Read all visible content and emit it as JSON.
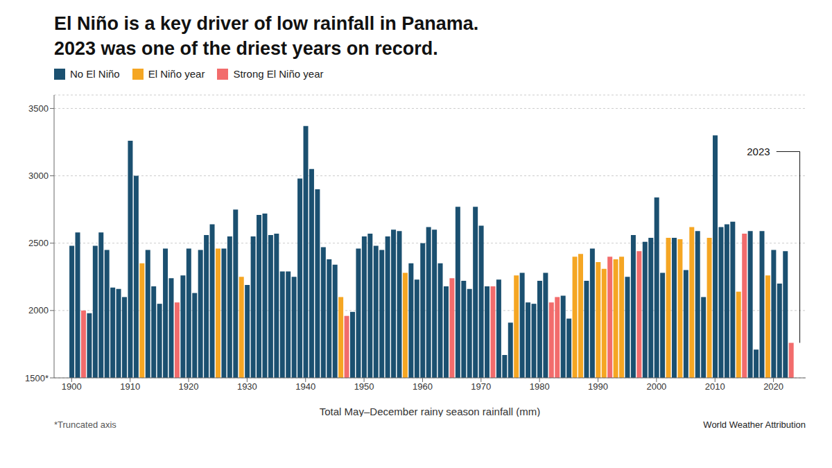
{
  "chart_data": {
    "type": "bar",
    "title": "El Niño is a key driver of low rainfall in Panama.",
    "subtitle": "2023 was one of the driest years on record.",
    "x_label": "Total May–December rainy season rainfall (mm)",
    "note": "*Truncated axis",
    "source": "World Weather Attribution",
    "annotations": [
      {
        "text": "2023",
        "x": 2023,
        "y": 3180
      }
    ],
    "stacked": true,
    "grid": true,
    "legend": "top",
    "xlim": [
      1897,
      2025.5
    ],
    "xticks": [
      1900,
      1910,
      1920,
      1930,
      1940,
      1950,
      1960,
      1970,
      1980,
      1990,
      2000,
      2010,
      2020
    ],
    "ylim": [
      1500,
      3600
    ],
    "yticks": [
      {
        "value": 1500,
        "label": "1500*"
      },
      2000,
      2500,
      3000,
      3500
    ],
    "x": [
      1900,
      1901,
      1902,
      1903,
      1904,
      1905,
      1906,
      1907,
      1908,
      1909,
      1910,
      1911,
      1912,
      1913,
      1914,
      1915,
      1916,
      1917,
      1918,
      1919,
      1920,
      1921,
      1922,
      1923,
      1924,
      1925,
      1926,
      1927,
      1928,
      1929,
      1930,
      1931,
      1932,
      1933,
      1934,
      1935,
      1936,
      1937,
      1938,
      1939,
      1940,
      1941,
      1942,
      1943,
      1944,
      1945,
      1946,
      1947,
      1948,
      1949,
      1950,
      1951,
      1952,
      1953,
      1954,
      1955,
      1956,
      1957,
      1958,
      1959,
      1960,
      1961,
      1962,
      1963,
      1964,
      1965,
      1966,
      1967,
      1968,
      1969,
      1970,
      1971,
      1972,
      1973,
      1974,
      1975,
      1976,
      1977,
      1978,
      1979,
      1980,
      1981,
      1982,
      1983,
      1984,
      1985,
      1986,
      1987,
      1988,
      1989,
      1990,
      1991,
      1992,
      1993,
      1994,
      1995,
      1996,
      1997,
      1998,
      1999,
      2000,
      2001,
      2002,
      2003,
      2004,
      2005,
      2006,
      2007,
      2008,
      2009,
      2010,
      2011,
      2012,
      2013,
      2014,
      2015,
      2016,
      2017,
      2018,
      2019,
      2020,
      2021,
      2022,
      2023
    ],
    "series": [
      {
        "name": "No El Niño",
        "color": "#1b5070",
        "values": [
          2480,
          2580,
          null,
          1980,
          2480,
          2580,
          2450,
          2170,
          2160,
          2100,
          3260,
          3000,
          null,
          2450,
          2180,
          2050,
          2460,
          2240,
          null,
          2260,
          2460,
          2130,
          2450,
          2560,
          2640,
          null,
          2460,
          2550,
          2750,
          null,
          2190,
          2550,
          2710,
          2720,
          2560,
          2570,
          2290,
          2290,
          2250,
          2980,
          3370,
          3050,
          2900,
          2470,
          2380,
          2340,
          null,
          null,
          1990,
          2460,
          2550,
          2570,
          2480,
          2450,
          2550,
          2600,
          2590,
          null,
          2350,
          2230,
          2500,
          2620,
          2600,
          2350,
          2180,
          null,
          2770,
          2220,
          2160,
          2770,
          2630,
          2180,
          null,
          2230,
          1670,
          1910,
          null,
          2280,
          2060,
          2050,
          2220,
          2280,
          null,
          null,
          2110,
          1940,
          null,
          null,
          2220,
          2460,
          null,
          null,
          null,
          null,
          null,
          2250,
          2560,
          null,
          2510,
          2540,
          2840,
          2280,
          null,
          2540,
          null,
          2300,
          null,
          2590,
          2100,
          null,
          3300,
          2620,
          2640,
          2660,
          null,
          null,
          2590,
          1710,
          2590,
          null,
          2450,
          2200,
          2440,
          null
        ]
      },
      {
        "name": "El Niño year",
        "color": "#f5a623",
        "values": [
          null,
          null,
          null,
          null,
          null,
          null,
          null,
          null,
          null,
          null,
          null,
          null,
          2350,
          null,
          null,
          null,
          null,
          null,
          null,
          null,
          null,
          null,
          null,
          null,
          null,
          2460,
          null,
          null,
          null,
          2250,
          null,
          null,
          null,
          null,
          null,
          null,
          null,
          null,
          null,
          null,
          null,
          null,
          null,
          null,
          null,
          null,
          2100,
          null,
          null,
          null,
          null,
          null,
          null,
          null,
          null,
          null,
          null,
          2280,
          null,
          null,
          null,
          null,
          null,
          null,
          null,
          null,
          null,
          null,
          null,
          null,
          null,
          null,
          null,
          null,
          null,
          null,
          2260,
          null,
          null,
          null,
          null,
          null,
          null,
          null,
          null,
          null,
          2400,
          2420,
          null,
          null,
          2360,
          2310,
          null,
          2380,
          2400,
          null,
          null,
          null,
          null,
          null,
          null,
          null,
          2540,
          null,
          2530,
          null,
          2620,
          null,
          null,
          2540,
          null,
          null,
          null,
          null,
          2140,
          null,
          null,
          null,
          null,
          2260,
          null,
          null,
          null,
          null
        ]
      },
      {
        "name": "Strong El Niño year",
        "color": "#f26c6c",
        "values": [
          null,
          null,
          2000,
          null,
          null,
          null,
          null,
          null,
          null,
          null,
          null,
          null,
          null,
          null,
          null,
          null,
          null,
          null,
          2060,
          null,
          null,
          null,
          null,
          null,
          null,
          null,
          null,
          null,
          null,
          null,
          null,
          null,
          null,
          null,
          null,
          null,
          null,
          null,
          null,
          null,
          null,
          null,
          null,
          null,
          null,
          null,
          null,
          1960,
          null,
          null,
          null,
          null,
          null,
          null,
          null,
          null,
          null,
          null,
          null,
          null,
          null,
          null,
          null,
          null,
          null,
          2240,
          null,
          null,
          null,
          null,
          null,
          null,
          2180,
          null,
          null,
          null,
          null,
          null,
          null,
          null,
          null,
          null,
          2060,
          2100,
          null,
          null,
          null,
          null,
          null,
          null,
          null,
          null,
          2400,
          null,
          null,
          null,
          null,
          2440,
          null,
          null,
          null,
          null,
          null,
          null,
          null,
          null,
          null,
          null,
          null,
          null,
          null,
          null,
          null,
          null,
          null,
          2570,
          null,
          null,
          null,
          null,
          null,
          null,
          null,
          1760
        ]
      }
    ]
  }
}
